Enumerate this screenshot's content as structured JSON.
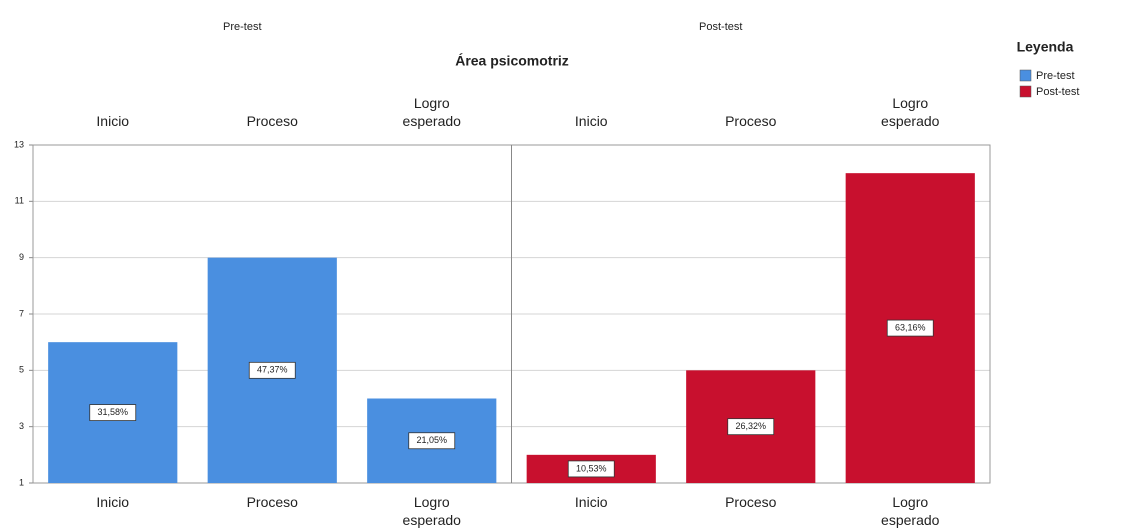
{
  "chart_data": {
    "type": "bar",
    "title": "Área psicomotriz",
    "legend_title": "Leyenda",
    "legend_position": "right",
    "categories": [
      "Inicio",
      "Proceso",
      "Logro esperado"
    ],
    "series": [
      {
        "name": "Pre-test",
        "color": "#4a8fe0",
        "values": [
          6,
          9,
          4
        ],
        "percentages": [
          31.58,
          47.37,
          21.05
        ],
        "percentage_labels": [
          "31,58%",
          "47,37%",
          "21,05%"
        ]
      },
      {
        "name": "Post-test",
        "color": "#c8102e",
        "values": [
          2,
          5,
          12
        ],
        "percentages": [
          10.53,
          26.32,
          63.16
        ],
        "percentage_labels": [
          "10,53%",
          "26,32%",
          "63,16%"
        ]
      }
    ],
    "ylim": [
      1,
      13
    ],
    "yticks": [
      1,
      3,
      5,
      7,
      9,
      11,
      13
    ],
    "grid": true
  }
}
